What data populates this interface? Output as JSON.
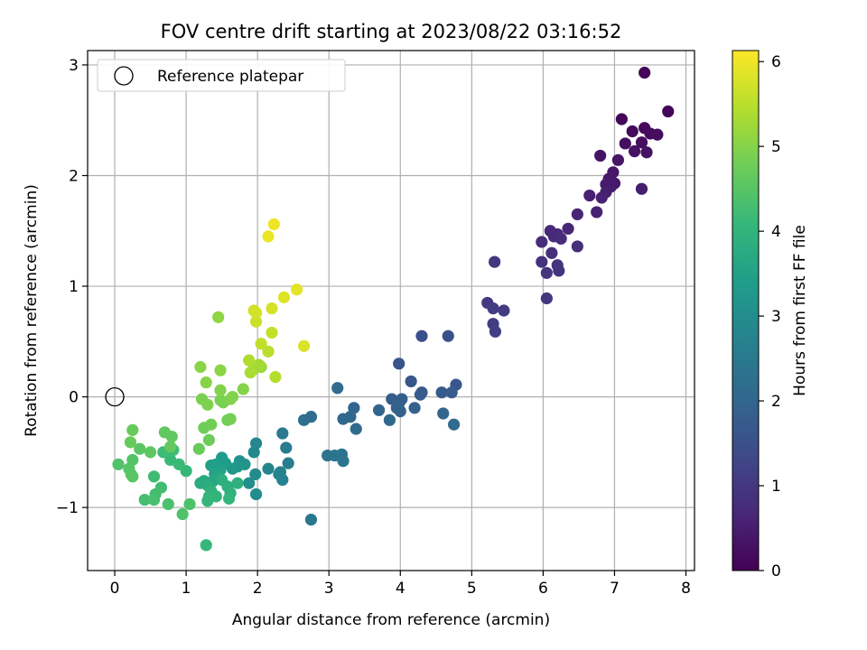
{
  "chart_data": {
    "type": "scatter",
    "title": "FOV centre drift starting at 2023/08/22 03:16:52",
    "xlabel": "Angular distance from reference (arcmin)",
    "ylabel": "Rotation from reference (arcmin)",
    "xlim": [
      -0.38,
      8.12
    ],
    "ylim": [
      -1.57,
      3.13
    ],
    "xticks": [
      0,
      1,
      2,
      3,
      4,
      5,
      6,
      7,
      8
    ],
    "yticks": [
      -1,
      0,
      1,
      2,
      3
    ],
    "xtick_labels": [
      "0",
      "1",
      "2",
      "3",
      "4",
      "5",
      "6",
      "7",
      "8"
    ],
    "ytick_labels": [
      "−1",
      "0",
      "1",
      "2",
      "3"
    ],
    "grid": true,
    "legend": {
      "placement": "top-left",
      "entries": [
        "Reference platepar"
      ]
    },
    "reference_point": {
      "x": 0,
      "y": 0
    },
    "colorbar": {
      "label": "Hours from first FF file",
      "range": [
        0,
        6.13
      ],
      "ticks": [
        0,
        1,
        2,
        3,
        4,
        5,
        6
      ],
      "tick_labels": [
        "0",
        "1",
        "2",
        "3",
        "4",
        "5",
        "6"
      ],
      "colormap": "viridis"
    },
    "points": [
      [
        7.42,
        2.93,
        0.05
      ],
      [
        7.75,
        2.58,
        0.08
      ],
      [
        7.1,
        2.51,
        0.1
      ],
      [
        7.42,
        2.43,
        0.12
      ],
      [
        7.25,
        2.4,
        0.15
      ],
      [
        7.5,
        2.38,
        0.18
      ],
      [
        7.6,
        2.37,
        0.2
      ],
      [
        7.38,
        2.3,
        0.22
      ],
      [
        7.15,
        2.29,
        0.25
      ],
      [
        7.28,
        2.22,
        0.28
      ],
      [
        7.45,
        2.21,
        0.3
      ],
      [
        6.8,
        2.18,
        0.33
      ],
      [
        7.05,
        2.14,
        0.36
      ],
      [
        6.98,
        2.03,
        0.38
      ],
      [
        6.92,
        1.97,
        0.4
      ],
      [
        7.0,
        1.93,
        0.42
      ],
      [
        6.95,
        1.9,
        0.45
      ],
      [
        6.88,
        1.92,
        0.48
      ],
      [
        7.38,
        1.88,
        0.5
      ],
      [
        6.88,
        1.85,
        0.52
      ],
      [
        6.65,
        1.82,
        0.55
      ],
      [
        6.82,
        1.8,
        0.58
      ],
      [
        6.75,
        1.67,
        0.6
      ],
      [
        6.48,
        1.65,
        0.63
      ],
      [
        6.35,
        1.52,
        0.66
      ],
      [
        6.1,
        1.5,
        0.7
      ],
      [
        6.2,
        1.47,
        0.72
      ],
      [
        6.15,
        1.45,
        0.75
      ],
      [
        6.25,
        1.43,
        0.78
      ],
      [
        5.98,
        1.4,
        0.8
      ],
      [
        6.48,
        1.36,
        0.82
      ],
      [
        6.12,
        1.3,
        0.85
      ],
      [
        5.98,
        1.22,
        0.88
      ],
      [
        6.2,
        1.19,
        0.9
      ],
      [
        6.22,
        1.14,
        0.93
      ],
      [
        6.05,
        1.12,
        0.95
      ],
      [
        6.05,
        0.89,
        0.98
      ],
      [
        5.32,
        1.22,
        1.0
      ],
      [
        5.22,
        0.85,
        1.05
      ],
      [
        5.3,
        0.8,
        1.08
      ],
      [
        5.45,
        0.78,
        1.1
      ],
      [
        5.3,
        0.66,
        1.12
      ],
      [
        5.33,
        0.59,
        1.15
      ],
      [
        4.3,
        0.55,
        1.5
      ],
      [
        4.67,
        0.55,
        1.55
      ],
      [
        3.98,
        0.3,
        1.6
      ],
      [
        4.78,
        0.11,
        1.65
      ],
      [
        4.15,
        0.14,
        1.68
      ],
      [
        4.3,
        0.04,
        1.7
      ],
      [
        4.58,
        0.04,
        1.72
      ],
      [
        4.72,
        0.04,
        1.75
      ],
      [
        4.28,
        0.02,
        1.78
      ],
      [
        3.88,
        -0.02,
        1.8
      ],
      [
        4.02,
        -0.02,
        1.82
      ],
      [
        3.98,
        -0.06,
        1.85
      ],
      [
        3.95,
        -0.1,
        1.88
      ],
      [
        4.2,
        -0.1,
        1.9
      ],
      [
        4.0,
        -0.13,
        1.92
      ],
      [
        3.7,
        -0.12,
        1.95
      ],
      [
        3.35,
        -0.1,
        1.98
      ],
      [
        4.6,
        -0.15,
        2.0
      ],
      [
        3.3,
        -0.18,
        2.02
      ],
      [
        3.2,
        -0.2,
        2.05
      ],
      [
        3.85,
        -0.21,
        2.08
      ],
      [
        4.75,
        -0.25,
        2.1
      ],
      [
        3.38,
        -0.29,
        2.12
      ],
      [
        3.12,
        0.08,
        2.15
      ],
      [
        2.75,
        -0.18,
        2.18
      ],
      [
        2.65,
        -0.21,
        2.2
      ],
      [
        3.18,
        -0.52,
        2.3
      ],
      [
        2.98,
        -0.53,
        2.35
      ],
      [
        3.08,
        -0.53,
        2.38
      ],
      [
        3.2,
        -0.58,
        2.4
      ],
      [
        2.75,
        -1.11,
        2.45
      ],
      [
        2.35,
        -0.33,
        2.5
      ],
      [
        2.4,
        -0.46,
        2.55
      ],
      [
        2.43,
        -0.6,
        2.6
      ],
      [
        2.32,
        -0.68,
        2.65
      ],
      [
        2.35,
        -0.75,
        2.7
      ],
      [
        2.3,
        -0.7,
        2.75
      ],
      [
        2.15,
        -0.65,
        2.8
      ],
      [
        1.98,
        -0.42,
        2.85
      ],
      [
        1.95,
        -0.5,
        2.9
      ],
      [
        1.97,
        -0.7,
        2.95
      ],
      [
        1.98,
        -0.88,
        3.0
      ],
      [
        1.88,
        -0.78,
        3.05
      ],
      [
        1.75,
        -0.58,
        3.1
      ],
      [
        1.82,
        -0.61,
        3.15
      ],
      [
        1.72,
        -0.63,
        3.2
      ],
      [
        1.65,
        -0.65,
        3.25
      ],
      [
        1.5,
        -0.55,
        3.3
      ],
      [
        1.55,
        -0.6,
        3.35
      ],
      [
        1.42,
        -0.61,
        3.4
      ],
      [
        1.35,
        -0.62,
        3.45
      ],
      [
        1.48,
        -0.66,
        3.5
      ],
      [
        1.4,
        -0.7,
        3.55
      ],
      [
        1.45,
        -0.72,
        3.6
      ],
      [
        1.38,
        -0.76,
        3.65
      ],
      [
        1.25,
        -0.76,
        3.7
      ],
      [
        1.2,
        -0.78,
        3.75
      ],
      [
        1.3,
        -0.8,
        3.8
      ],
      [
        1.5,
        -0.75,
        3.85
      ],
      [
        1.58,
        -0.81,
        3.88
      ],
      [
        1.72,
        -0.78,
        3.9
      ],
      [
        1.62,
        -0.87,
        3.92
      ],
      [
        1.35,
        -0.85,
        3.95
      ],
      [
        1.32,
        -0.9,
        3.98
      ],
      [
        1.42,
        -0.9,
        4.0
      ],
      [
        1.6,
        -0.92,
        4.02
      ],
      [
        1.3,
        -0.94,
        4.05
      ],
      [
        1.28,
        -1.34,
        4.08
      ],
      [
        1.0,
        -0.67,
        4.1
      ],
      [
        0.78,
        -0.57,
        4.12
      ],
      [
        0.9,
        -0.61,
        4.15
      ],
      [
        0.82,
        -0.48,
        4.18
      ],
      [
        0.68,
        -0.5,
        4.2
      ],
      [
        0.55,
        -0.72,
        4.22
      ],
      [
        0.65,
        -0.82,
        4.25
      ],
      [
        0.57,
        -0.88,
        4.28
      ],
      [
        0.42,
        -0.93,
        4.3
      ],
      [
        0.55,
        -0.93,
        4.32
      ],
      [
        0.75,
        -0.97,
        4.35
      ],
      [
        1.05,
        -0.97,
        4.38
      ],
      [
        0.95,
        -1.06,
        4.4
      ],
      [
        0.05,
        -0.61,
        4.42
      ],
      [
        0.25,
        -0.57,
        4.45
      ],
      [
        0.2,
        -0.65,
        4.48
      ],
      [
        0.23,
        -0.7,
        4.5
      ],
      [
        0.25,
        -0.72,
        4.52
      ],
      [
        0.35,
        -0.47,
        4.55
      ],
      [
        0.5,
        -0.5,
        4.58
      ],
      [
        0.7,
        -0.32,
        4.6
      ],
      [
        0.8,
        -0.36,
        4.62
      ],
      [
        0.78,
        -0.45,
        4.65
      ],
      [
        0.25,
        -0.3,
        4.68
      ],
      [
        0.22,
        -0.41,
        4.7
      ],
      [
        1.18,
        -0.47,
        4.72
      ],
      [
        1.32,
        -0.39,
        4.75
      ],
      [
        1.25,
        -0.28,
        4.78
      ],
      [
        1.35,
        -0.25,
        4.8
      ],
      [
        1.58,
        -0.21,
        4.82
      ],
      [
        1.62,
        -0.2,
        4.84
      ],
      [
        1.52,
        -0.05,
        4.86
      ],
      [
        1.48,
        -0.03,
        4.88
      ],
      [
        1.22,
        -0.02,
        4.9
      ],
      [
        1.3,
        -0.07,
        4.92
      ],
      [
        1.62,
        -0.02,
        4.94
      ],
      [
        1.65,
        0.0,
        4.96
      ],
      [
        1.48,
        0.06,
        4.98
      ],
      [
        1.8,
        0.07,
        5.0
      ],
      [
        1.28,
        0.13,
        5.02
      ],
      [
        1.2,
        0.27,
        5.04
      ],
      [
        1.48,
        0.24,
        5.06
      ],
      [
        1.45,
        0.72,
        5.1
      ],
      [
        2.05,
        0.27,
        5.2
      ],
      [
        1.95,
        0.25,
        5.25
      ],
      [
        2.02,
        0.29,
        5.3
      ],
      [
        1.9,
        0.22,
        5.35
      ],
      [
        1.88,
        0.33,
        5.4
      ],
      [
        2.25,
        0.18,
        5.45
      ],
      [
        2.15,
        0.41,
        5.5
      ],
      [
        2.05,
        0.48,
        5.55
      ],
      [
        2.2,
        0.58,
        5.6
      ],
      [
        1.98,
        0.68,
        5.65
      ],
      [
        1.95,
        0.78,
        5.7
      ],
      [
        1.98,
        0.76,
        5.72
      ],
      [
        2.2,
        0.8,
        5.75
      ],
      [
        2.65,
        0.46,
        5.8
      ],
      [
        2.37,
        0.9,
        5.85
      ],
      [
        2.55,
        0.97,
        5.9
      ],
      [
        2.15,
        1.45,
        5.95
      ],
      [
        2.23,
        1.56,
        6.0
      ]
    ]
  }
}
